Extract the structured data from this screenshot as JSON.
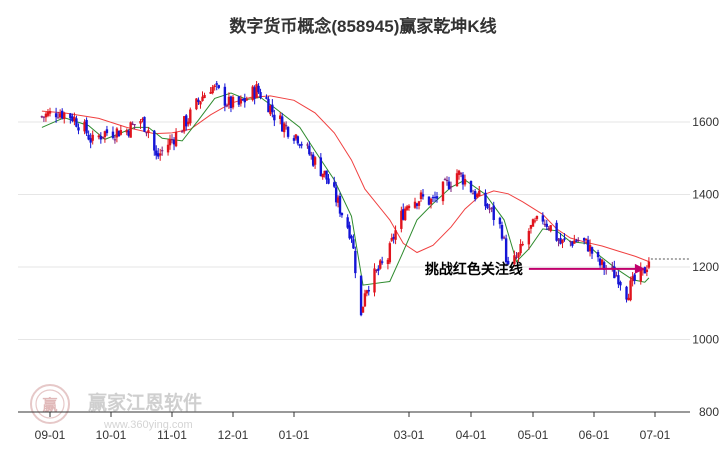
{
  "chart_data": {
    "type": "candlestick",
    "title": "数字货币概念(858945)赢家乾坤K线",
    "x_ticks": [
      "09-01",
      "10-01",
      "11-01",
      "12-01",
      "01-01",
      "03-01",
      "04-01",
      "05-01",
      "06-01",
      "07-01"
    ],
    "y_ticks": [
      800,
      1000,
      1200,
      1400,
      1600
    ],
    "ylim": [
      800,
      1760
    ],
    "grid": true,
    "close_trend": [
      [
        "2023-08-28",
        1615
      ],
      [
        "2023-09-05",
        1630
      ],
      [
        "2023-09-12",
        1615
      ],
      [
        "2023-09-18",
        1580
      ],
      [
        "2023-09-22",
        1545
      ],
      [
        "2023-09-27",
        1570
      ],
      [
        "2023-10-09",
        1578
      ],
      [
        "2023-10-16",
        1605
      ],
      [
        "2023-10-20",
        1580
      ],
      [
        "2023-10-24",
        1500
      ],
      [
        "2023-10-30",
        1540
      ],
      [
        "2023-11-03",
        1565
      ],
      [
        "2023-11-09",
        1610
      ],
      [
        "2023-11-15",
        1665
      ],
      [
        "2023-11-20",
        1700
      ],
      [
        "2023-11-24",
        1680
      ],
      [
        "2023-11-29",
        1650
      ],
      [
        "2023-12-04",
        1645
      ],
      [
        "2023-12-08",
        1665
      ],
      [
        "2023-12-13",
        1690
      ],
      [
        "2023-12-18",
        1660
      ],
      [
        "2023-12-22",
        1620
      ],
      [
        "2023-12-27",
        1590
      ],
      [
        "2024-01-03",
        1560
      ],
      [
        "2024-01-08",
        1520
      ],
      [
        "2024-01-12",
        1490
      ],
      [
        "2024-01-17",
        1455
      ],
      [
        "2024-01-22",
        1400
      ],
      [
        "2024-01-26",
        1350
      ],
      [
        "2024-01-31",
        1290
      ],
      [
        "2024-02-02",
        1200
      ],
      [
        "2024-02-05",
        1060
      ],
      [
        "2024-02-07",
        1140
      ],
      [
        "2024-02-19",
        1225
      ],
      [
        "2024-02-22",
        1285
      ],
      [
        "2024-02-26",
        1340
      ],
      [
        "2024-03-01",
        1385
      ],
      [
        "2024-03-07",
        1390
      ],
      [
        "2024-03-13",
        1380
      ],
      [
        "2024-03-19",
        1420
      ],
      [
        "2024-03-25",
        1460
      ],
      [
        "2024-03-29",
        1440
      ],
      [
        "2024-04-03",
        1400
      ],
      [
        "2024-04-10",
        1360
      ],
      [
        "2024-04-16",
        1300
      ],
      [
        "2024-04-19",
        1195
      ],
      [
        "2024-04-24",
        1230
      ],
      [
        "2024-04-29",
        1300
      ],
      [
        "2024-05-06",
        1335
      ],
      [
        "2024-05-10",
        1310
      ],
      [
        "2024-05-15",
        1265
      ],
      [
        "2024-05-20",
        1270
      ],
      [
        "2024-05-24",
        1275
      ],
      [
        "2024-05-29",
        1260
      ],
      [
        "2024-06-03",
        1210
      ],
      [
        "2024-06-07",
        1195
      ],
      [
        "2024-06-13",
        1175
      ],
      [
        "2024-06-17",
        1130
      ],
      [
        "2024-06-21",
        1160
      ],
      [
        "2024-06-25",
        1180
      ],
      [
        "2024-06-28",
        1222
      ]
    ],
    "ma_short": [
      [
        "2023-08-28",
        1585
      ],
      [
        "2023-09-08",
        1612
      ],
      [
        "2023-09-20",
        1590
      ],
      [
        "2023-09-28",
        1552
      ],
      [
        "2023-10-13",
        1585
      ],
      [
        "2023-10-20",
        1585
      ],
      [
        "2023-10-27",
        1555
      ],
      [
        "2023-11-06",
        1548
      ],
      [
        "2023-11-14",
        1605
      ],
      [
        "2023-11-22",
        1665
      ],
      [
        "2023-11-30",
        1680
      ],
      [
        "2023-12-08",
        1662
      ],
      [
        "2023-12-15",
        1668
      ],
      [
        "2023-12-22",
        1640
      ],
      [
        "2024-01-04",
        1585
      ],
      [
        "2024-01-12",
        1520
      ],
      [
        "2024-01-22",
        1440
      ],
      [
        "2024-01-31",
        1340
      ],
      [
        "2024-02-06",
        1150
      ],
      [
        "2024-02-20",
        1160
      ],
      [
        "2024-02-26",
        1230
      ],
      [
        "2024-03-05",
        1330
      ],
      [
        "2024-03-13",
        1375
      ],
      [
        "2024-03-22",
        1420
      ],
      [
        "2024-03-29",
        1440
      ],
      [
        "2024-04-08",
        1400
      ],
      [
        "2024-04-17",
        1330
      ],
      [
        "2024-04-23",
        1215
      ],
      [
        "2024-04-29",
        1250
      ],
      [
        "2024-05-06",
        1305
      ],
      [
        "2024-05-13",
        1300
      ],
      [
        "2024-05-20",
        1270
      ],
      [
        "2024-05-28",
        1265
      ],
      [
        "2024-06-04",
        1230
      ],
      [
        "2024-06-12",
        1195
      ],
      [
        "2024-06-20",
        1165
      ],
      [
        "2024-06-26",
        1158
      ],
      [
        "2024-06-28",
        1170
      ]
    ],
    "ma_long": [
      [
        "2023-08-28",
        1630
      ],
      [
        "2023-09-08",
        1625
      ],
      [
        "2023-09-25",
        1610
      ],
      [
        "2023-10-09",
        1585
      ],
      [
        "2023-10-23",
        1568
      ],
      [
        "2023-11-01",
        1570
      ],
      [
        "2023-11-10",
        1580
      ],
      [
        "2023-11-20",
        1620
      ],
      [
        "2023-11-30",
        1652
      ],
      [
        "2023-12-10",
        1668
      ],
      [
        "2023-12-20",
        1672
      ],
      [
        "2024-01-01",
        1660
      ],
      [
        "2024-01-12",
        1625
      ],
      [
        "2024-01-22",
        1570
      ],
      [
        "2024-01-31",
        1495
      ],
      [
        "2024-02-07",
        1415
      ],
      [
        "2024-02-20",
        1330
      ],
      [
        "2024-02-27",
        1265
      ],
      [
        "2024-03-05",
        1240
      ],
      [
        "2024-03-13",
        1260
      ],
      [
        "2024-03-22",
        1310
      ],
      [
        "2024-03-29",
        1360
      ],
      [
        "2024-04-05",
        1395
      ],
      [
        "2024-04-12",
        1410
      ],
      [
        "2024-04-19",
        1402
      ],
      [
        "2024-04-26",
        1380
      ],
      [
        "2024-05-06",
        1345
      ],
      [
        "2024-05-13",
        1305
      ],
      [
        "2024-05-20",
        1280
      ],
      [
        "2024-05-28",
        1268
      ],
      [
        "2024-06-05",
        1258
      ],
      [
        "2024-06-13",
        1244
      ],
      [
        "2024-06-21",
        1230
      ],
      [
        "2024-06-28",
        1215
      ]
    ],
    "last_value": 1222,
    "annotation": {
      "text": "挑战红色关注线",
      "arrow_start": [
        "2024-04-29",
        1195
      ],
      "arrow_end": [
        "2024-06-28",
        1195
      ]
    },
    "colors": {
      "up": "#e0141e",
      "down": "#1414d6",
      "neutral": "#7a1a7a",
      "ma_short": "#2e8b2e",
      "ma_long": "#f04040",
      "annotation_arrow": "#c0006c",
      "grid": "#e6e6e6"
    }
  },
  "watermark": {
    "logo_text": "赢",
    "company": "赢家江恩软件",
    "url": "www.360ying.com"
  }
}
